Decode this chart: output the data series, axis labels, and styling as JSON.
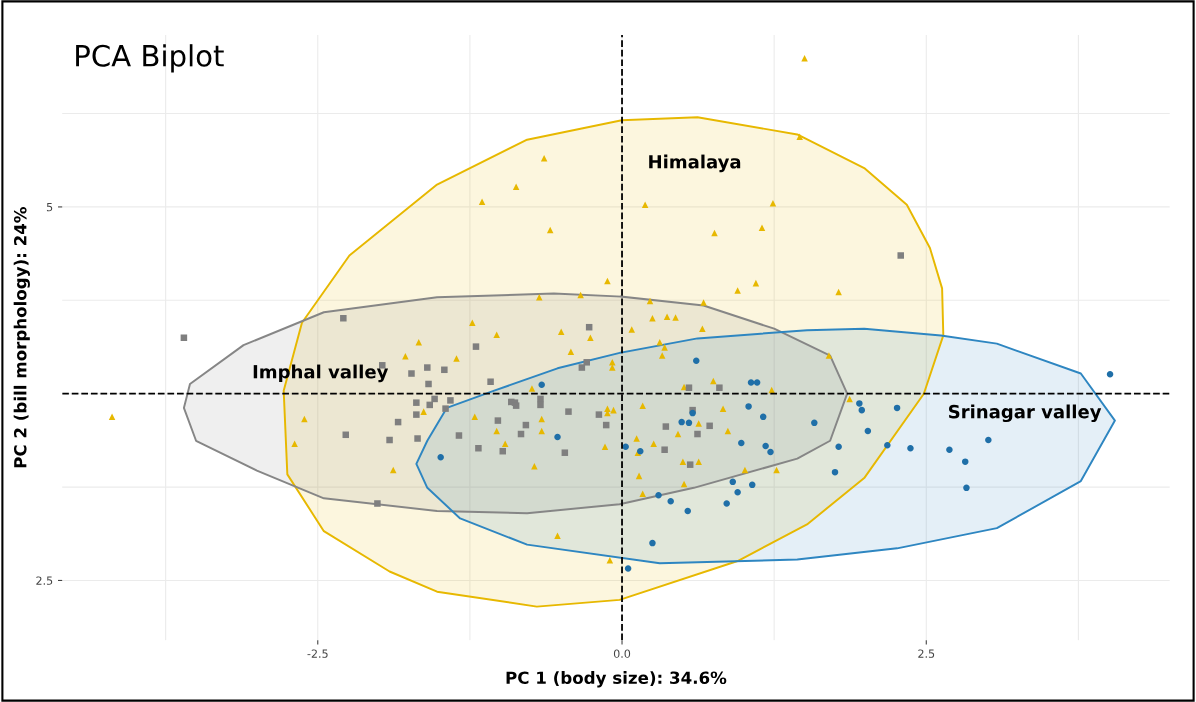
{
  "chart_data": {
    "type": "scatter",
    "title": "PCA Biplot",
    "xlabel": "PC 1 (body size): 34.6%",
    "ylabel": "PC 2 (bill morphology): 24%",
    "xlim": [
      -4.6,
      4.5
    ],
    "ylim": [
      2.1,
      6.15
    ],
    "xticks": [
      -2.5,
      {
        "value": 0,
        "label": "0.0"
      },
      2.5
    ],
    "yticks": [
      2.5,
      5
    ],
    "grid": true,
    "ref_lines": [
      {
        "axis": "x",
        "value": 0,
        "color": "#000000",
        "line_style": "dashed"
      },
      {
        "axis": "y",
        "value": 3.75,
        "color": "#000000",
        "line_style": "dashed"
      }
    ],
    "annotations": [
      "Himalaya",
      "Imphal valley",
      "Srinagar valley"
    ],
    "series": [
      {
        "type": "area",
        "color": "#e7b800",
        "x": [
          0.0,
          0.62,
          1.44,
          1.99,
          2.34,
          2.53,
          2.63,
          2.64,
          2.48,
          1.99,
          1.52,
          0.95,
          -0.02,
          -0.7,
          -1.52,
          -1.91,
          -2.45,
          -2.75,
          -2.78,
          -2.63,
          -2.24,
          -1.52,
          -0.78,
          0.0
        ],
        "values": [
          5.58,
          5.6,
          5.485,
          5.26,
          5.015,
          4.725,
          4.455,
          4.14,
          3.75,
          3.185,
          2.875,
          2.63,
          2.37,
          2.325,
          2.425,
          2.56,
          2.83,
          3.21,
          3.77,
          4.225,
          4.675,
          5.15,
          5.45,
          5.58
        ]
      },
      {
        "type": "area",
        "color": "#868686",
        "x": [
          -0.01,
          0.67,
          1.25,
          1.71,
          1.85,
          1.71,
          1.44,
          0.59,
          -0.02,
          -0.78,
          -1.52,
          -2.45,
          -3.0,
          -3.5,
          -3.6,
          -3.55,
          -3.11,
          -2.45,
          -1.52,
          -0.56,
          -0.01
        ],
        "values": [
          4.4,
          4.34,
          4.185,
          4.005,
          3.75,
          3.435,
          3.315,
          3.12,
          3.01,
          2.95,
          2.965,
          3.05,
          3.235,
          3.435,
          3.655,
          3.815,
          4.075,
          4.295,
          4.395,
          4.42,
          4.4
        ]
      },
      {
        "type": "area",
        "color": "#2e86c1",
        "x": [
          -0.01,
          0.62,
          1.52,
          1.99,
          2.62,
          3.08,
          3.77,
          4.05,
          3.77,
          3.08,
          2.26,
          1.44,
          0.31,
          -0.78,
          -1.33,
          -1.6,
          -1.69,
          -1.6,
          -1.44,
          -1.05,
          -0.53,
          -0.01
        ],
        "values": [
          4.025,
          4.12,
          4.175,
          4.185,
          4.14,
          4.085,
          3.885,
          3.57,
          3.165,
          2.85,
          2.715,
          2.64,
          2.615,
          2.74,
          2.915,
          3.12,
          3.28,
          3.435,
          3.655,
          3.77,
          3.92,
          4.025
        ]
      },
      {
        "type": "scatter",
        "marker": "triangle",
        "color": "#e7b800",
        "x": [
          1.5,
          1.46,
          -0.64,
          -0.87,
          -1.15,
          -0.59,
          0.19,
          0.76,
          1.15,
          1.24,
          1.78,
          -0.12,
          -0.68,
          -0.34,
          0.95,
          1.1,
          0.23,
          0.67,
          -1.23,
          -1.03,
          -0.5,
          -0.26,
          0.08,
          0.25,
          0.37,
          0.44,
          0.66,
          0.31,
          -4.19,
          -2.61,
          -2.69,
          -1.88,
          -1.67,
          -1.78,
          -1.63,
          -0.42,
          -1.36,
          -0.08,
          -0.08,
          0.35,
          0.33,
          -0.74,
          0.51,
          0.75,
          1.23,
          0.17,
          -0.12,
          -0.07,
          -0.12,
          0.83,
          -1.21,
          -0.66,
          -1.03,
          -0.66,
          0.63,
          0.46,
          0.87,
          0.12,
          0.26,
          -0.96,
          -0.14,
          0.13,
          -0.72,
          0.5,
          0.63,
          1.01,
          1.27,
          0.14,
          0.51,
          0.17,
          -0.53,
          -0.1,
          1.7,
          1.87
        ],
        "values": [
          5.995,
          5.47,
          5.325,
          5.135,
          5.035,
          4.845,
          5.015,
          4.825,
          4.86,
          5.025,
          4.43,
          4.505,
          4.395,
          4.41,
          4.44,
          4.49,
          4.37,
          4.36,
          4.225,
          4.145,
          4.165,
          4.125,
          4.18,
          4.255,
          4.265,
          4.26,
          4.185,
          4.095,
          3.595,
          3.58,
          3.415,
          3.24,
          4.095,
          4.0,
          3.63,
          4.03,
          3.985,
          3.96,
          3.925,
          4.06,
          4.005,
          3.785,
          3.795,
          3.835,
          3.775,
          3.67,
          3.65,
          3.64,
          3.62,
          3.65,
          3.595,
          3.58,
          3.5,
          3.5,
          3.55,
          3.48,
          3.5,
          3.45,
          3.415,
          3.415,
          3.395,
          3.355,
          3.265,
          3.295,
          3.295,
          3.24,
          3.24,
          3.2,
          3.145,
          3.08,
          2.8,
          2.635,
          4.005,
          3.715
        ]
      },
      {
        "type": "scatter",
        "marker": "square",
        "color": "#7f7f7f",
        "x": [
          -3.6,
          -2.29,
          2.29,
          -1.97,
          -1.73,
          -1.6,
          -1.59,
          -1.54,
          -1.69,
          -1.58,
          -1.69,
          -1.84,
          -2.27,
          -1.91,
          -1.68,
          -2.01,
          -1.2,
          -1.46,
          -1.08,
          -0.33,
          -0.29,
          -1.41,
          -1.45,
          -0.91,
          -0.88,
          -0.87,
          -0.67,
          -0.67,
          -0.44,
          -0.19,
          -1.02,
          -0.79,
          -0.13,
          -1.34,
          -0.83,
          -1.18,
          -0.98,
          -0.47,
          0.55,
          0.8,
          0.58,
          0.36,
          0.72,
          0.62,
          0.35,
          0.56,
          -0.27
        ],
        "values": [
          4.125,
          4.255,
          4.675,
          3.94,
          3.885,
          3.925,
          3.815,
          3.715,
          3.69,
          3.675,
          3.61,
          3.56,
          3.475,
          3.44,
          3.45,
          3.015,
          4.065,
          3.91,
          3.83,
          3.925,
          3.96,
          3.705,
          3.65,
          3.695,
          3.69,
          3.67,
          3.715,
          3.675,
          3.63,
          3.61,
          3.57,
          3.54,
          3.54,
          3.47,
          3.48,
          3.385,
          3.365,
          3.355,
          3.79,
          3.79,
          3.64,
          3.53,
          3.535,
          3.48,
          3.375,
          3.275,
          4.195
        ]
      },
      {
        "type": "scatter",
        "marker": "circle",
        "color": "#1f6fa8",
        "x": [
          -0.66,
          0.61,
          1.06,
          1.11,
          1.04,
          1.16,
          -0.53,
          -1.49,
          0.03,
          0.15,
          0.49,
          0.55,
          0.58,
          0.98,
          1.18,
          1.22,
          0.91,
          0.95,
          1.07,
          0.3,
          0.4,
          0.54,
          0.86,
          0.25,
          0.05,
          4.01,
          1.95,
          1.97,
          2.26,
          1.58,
          2.02,
          1.78,
          2.18,
          2.37,
          2.69,
          3.01,
          2.82,
          1.75,
          2.83
        ],
        "values": [
          3.81,
          3.97,
          3.825,
          3.825,
          3.665,
          3.595,
          3.46,
          3.325,
          3.395,
          3.365,
          3.56,
          3.555,
          3.62,
          3.42,
          3.4,
          3.36,
          3.16,
          3.09,
          3.14,
          3.07,
          3.03,
          2.965,
          3.015,
          2.75,
          2.58,
          3.88,
          3.685,
          3.64,
          3.655,
          3.555,
          3.5,
          3.395,
          3.405,
          3.385,
          3.375,
          3.44,
          3.295,
          3.225,
          3.12
        ]
      }
    ]
  }
}
